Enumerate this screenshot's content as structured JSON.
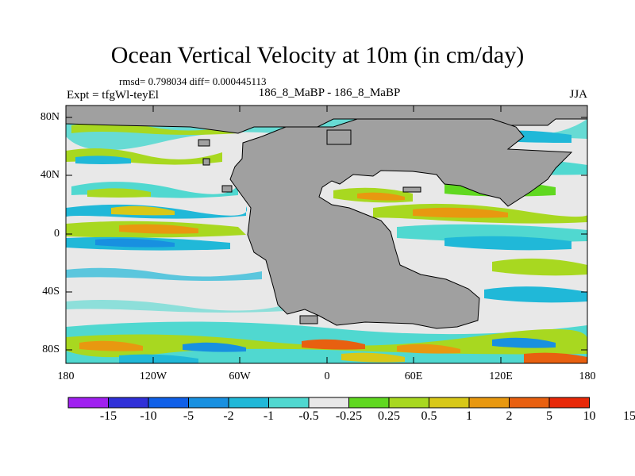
{
  "title": "Ocean Vertical Velocity at 10m (in cm/day)",
  "stats": "rmsd= 0.798034 diff= 0.000445113",
  "expt_label": "Expt = tfgWl-teyEl",
  "center_label": "186_8_MaBP - 186_8_MaBP",
  "season": "JJA",
  "lat_ticks": [
    "80N",
    "40N",
    "0",
    "40S",
    "80S"
  ],
  "lon_ticks": [
    "180",
    "120W",
    "60W",
    "0",
    "60E",
    "120E",
    "180"
  ],
  "colorbar": {
    "colors": [
      "#a020f0",
      "#3030d8",
      "#1060e8",
      "#1890e0",
      "#20b8d8",
      "#50d8d0",
      "#e8e8e8",
      "#60d820",
      "#a8d820",
      "#d8c818",
      "#e89810",
      "#e86010",
      "#e82808"
    ],
    "labels": [
      "-15",
      "-10",
      "-5",
      "-2",
      "-1",
      "-0.5",
      "-0.25",
      "0.25",
      "0.5",
      "1",
      "2",
      "5",
      "10",
      "15"
    ]
  },
  "land_color": "#a0a0a0"
}
